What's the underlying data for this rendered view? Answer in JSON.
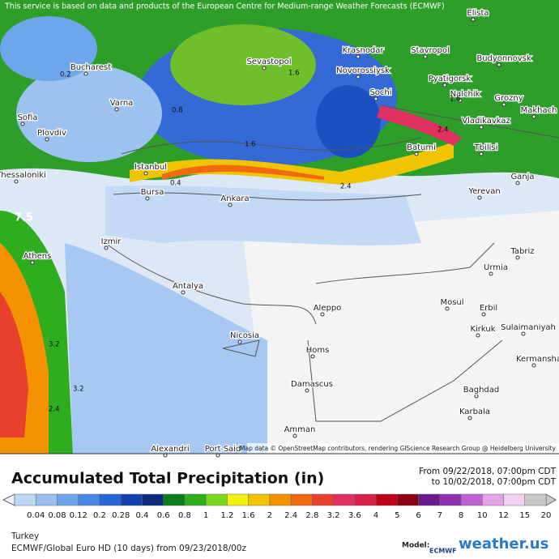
{
  "header": {
    "notice": "This service is based on data and products of the European Centre for Medium-range Weather Forecasts (ECMWF)"
  },
  "map": {
    "cities": [
      "Elista",
      "Bucharest",
      "Varna",
      "Sofia",
      "Plovdiv",
      "Sevastopol",
      "Krasnodar",
      "Stavropol",
      "Budyonnovsk",
      "Novorossiysk",
      "Pyatigorsk",
      "Sochi",
      "Nalchik",
      "Grozny",
      "Makhach",
      "Vladikavkaz",
      "Batumi",
      "Tbilisi",
      "Ganja",
      "Yerevan",
      "Istanbul",
      "Bursa",
      "Ankara",
      "Thessaloniki",
      "Izmir",
      "Athens",
      "Antalya",
      "Nicosia",
      "Aleppo",
      "Homs",
      "Damascus",
      "Amman",
      "Port Said",
      "Alexandri",
      "Mosul",
      "Erbil",
      "Kirkuk",
      "Sulaimaniyah",
      "Kermansha",
      "Baghdad",
      "Karbala",
      "Urmia",
      "Tabriz"
    ],
    "contour_labels": [
      "7.5",
      "0.8",
      "1.6",
      "2.4",
      "3.2",
      "2.4",
      "3.2",
      "1.6",
      "0.4",
      "0.2",
      "2.4",
      "1.6"
    ],
    "attribution": "Map data © OpenStreetMap contributors, rendering GIScience Research Group @ Heidelberg University"
  },
  "legend": {
    "title": "Accumulated Total Precipitation (in)",
    "from": "From 09/22/2018, 07:00pm CDT",
    "to": "to 10/02/2018, 07:00pm CDT",
    "scale": [
      0.04,
      0.08,
      0.12,
      0.2,
      0.28,
      0.4,
      0.6,
      0.8,
      1,
      1.2,
      1.6,
      2,
      2.4,
      2.8,
      3.2,
      3.6,
      4,
      5,
      6,
      7,
      8,
      10,
      12,
      15,
      20
    ],
    "colors": [
      "#bcd6f6",
      "#97c0f1",
      "#6ea6ec",
      "#4688e4",
      "#2565d4",
      "#1240ad",
      "#0b2a7c",
      "#0b7d1e",
      "#2eae1f",
      "#7ad81c",
      "#f3f10c",
      "#f5c300",
      "#f59200",
      "#f06a12",
      "#e8402c",
      "#e03062",
      "#d81f4a",
      "#c00018",
      "#8a0012",
      "#6b1a8e",
      "#9032b2",
      "#c062d2",
      "#e6a2e8",
      "#f1d2f1",
      "#c9c9c9"
    ]
  },
  "footer": {
    "region": "Turkey",
    "model_line": "ECMWF/Global Euro HD (10 days) from 09/23/2018/00z",
    "model_label": "Model:",
    "logo": "ECMWF",
    "brand": "weather.us"
  }
}
